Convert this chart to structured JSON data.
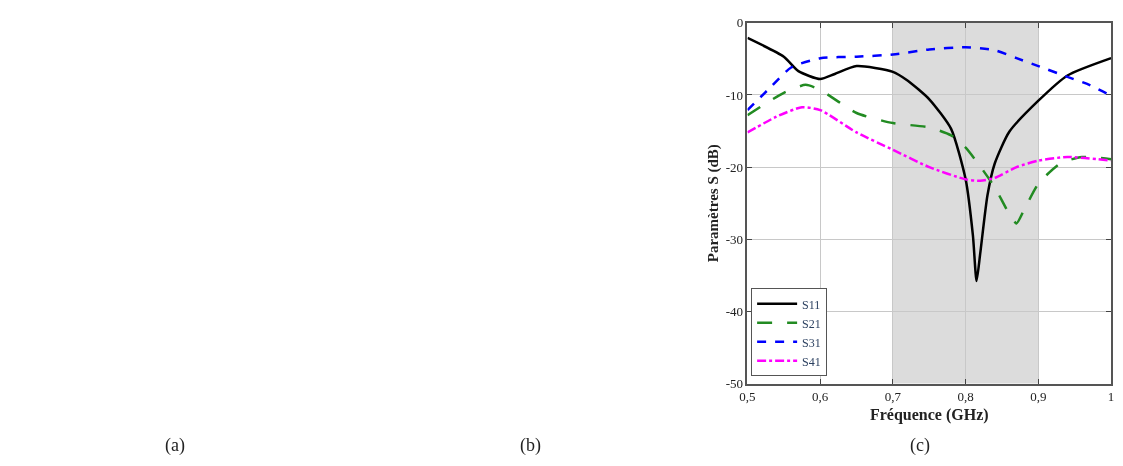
{
  "chart_data": {
    "type": "line",
    "xlabel": "Fréquence (GHz)",
    "ylabel": "Paramètres S (dB)",
    "annotations": [
      "(a)",
      "(b)",
      "(c)"
    ],
    "xlim": [
      0.5,
      1
    ],
    "xticks": [
      {
        "value": 0.5,
        "label": "0,5"
      },
      {
        "value": 0.6,
        "label": "0,6"
      },
      {
        "value": 0.7,
        "label": "0,7"
      },
      {
        "value": 0.8,
        "label": "0,8"
      },
      {
        "value": 0.9,
        "label": "0,9"
      },
      {
        "value": 1,
        "label": "1"
      }
    ],
    "ylim": [
      -50,
      0
    ],
    "yticks": [
      -50,
      -40,
      -30,
      -20,
      -10,
      0
    ],
    "grid": true,
    "legend": "bottom left",
    "bands": [
      {
        "axis": "x",
        "from": 0.7,
        "to": 0.9,
        "color": "#dcdcdc"
      }
    ],
    "series": [
      {
        "name": "S11",
        "color": "#000000",
        "line_style": "solid",
        "x": [
          0.5,
          0.55,
          0.57,
          0.6,
          0.62,
          0.65,
          0.7,
          0.72,
          0.75,
          0.78,
          0.8,
          0.81,
          0.815,
          0.82,
          0.83,
          0.84,
          0.86,
          0.9,
          0.94,
          1.0
        ],
        "values": [
          -2.1,
          -4.7,
          -6.7,
          -7.8,
          -7.1,
          -6.0,
          -6.8,
          -8.0,
          -10.6,
          -14.7,
          -21.7,
          -29.5,
          -35.8,
          -32.0,
          -23.9,
          -19.5,
          -15.1,
          -10.8,
          -7.3,
          -4.9
        ]
      },
      {
        "name": "S21",
        "color": "#228b22",
        "line_style": "dashed",
        "x": [
          0.5,
          0.55,
          0.58,
          0.6,
          0.65,
          0.7,
          0.75,
          0.78,
          0.8,
          0.82,
          0.84,
          0.86,
          0.87,
          0.88,
          0.9,
          0.93,
          0.96,
          1.0
        ],
        "values": [
          -12.8,
          -9.7,
          -8.6,
          -9.3,
          -12.5,
          -13.9,
          -14.5,
          -15.6,
          -17.3,
          -19.9,
          -22.8,
          -26.5,
          -27.8,
          -26.0,
          -22.3,
          -19.5,
          -18.6,
          -18.9
        ]
      },
      {
        "name": "S31",
        "color": "#0000ff",
        "line_style": "dotted",
        "x": [
          0.5,
          0.53,
          0.56,
          0.6,
          0.65,
          0.7,
          0.75,
          0.8,
          0.84,
          0.87,
          0.9,
          0.94,
          0.97,
          1.0
        ],
        "values": [
          -12.1,
          -9.1,
          -6.2,
          -4.9,
          -4.7,
          -4.4,
          -3.7,
          -3.4,
          -3.8,
          -4.9,
          -6.0,
          -7.5,
          -8.6,
          -10.1
        ]
      },
      {
        "name": "S41",
        "color": "#ff00ff",
        "line_style": "dashdot",
        "x": [
          0.5,
          0.54,
          0.575,
          0.6,
          0.65,
          0.7,
          0.75,
          0.8,
          0.82,
          0.84,
          0.87,
          0.9,
          0.94,
          1.0
        ],
        "values": [
          -15.2,
          -13.0,
          -11.7,
          -12.1,
          -15.2,
          -17.6,
          -20.0,
          -21.7,
          -21.9,
          -21.5,
          -20.0,
          -19.1,
          -18.6,
          -19.1
        ]
      }
    ]
  }
}
